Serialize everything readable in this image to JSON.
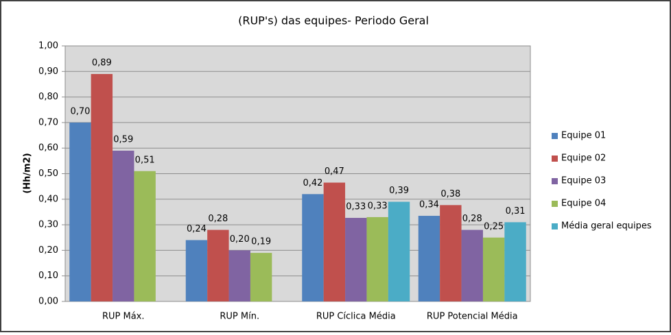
{
  "chart_data": {
    "type": "bar",
    "title": "(RUP's) das equipes- Periodo Geral",
    "y_label": "(Hh/m2)",
    "categories": [
      "RUP Máx.",
      "RUP Mín.",
      "RUP Cíclica Média",
      "RUP Potencial Média"
    ],
    "series": [
      {
        "name": "Equipe 01",
        "color": "#4f81bd",
        "values": [
          0.7,
          0.24,
          0.42,
          0.335
        ],
        "value_labels": [
          "0,70",
          "0,24",
          "0,42",
          "0,34"
        ]
      },
      {
        "name": "Equipe 02",
        "color": "#c0504d",
        "values": [
          0.89,
          0.28,
          0.465,
          0.377
        ],
        "value_labels": [
          "0,89",
          "0,28",
          "0,47",
          "0,38"
        ]
      },
      {
        "name": "Equipe 03",
        "color": "#8064a2",
        "values": [
          0.59,
          0.2,
          0.327,
          0.28
        ],
        "value_labels": [
          "0,59",
          "0,20",
          "0,33",
          "0,28"
        ]
      },
      {
        "name": "Equipe 04",
        "color": "#9bbb59",
        "values": [
          0.51,
          0.19,
          0.33,
          0.25
        ],
        "value_labels": [
          "0,51",
          "0,19",
          "0,33",
          "0,25"
        ]
      },
      {
        "name": "Média geral equipes",
        "color": "#4bacc6",
        "values": [
          null,
          null,
          0.39,
          0.31
        ],
        "value_labels": [
          null,
          null,
          "0,39",
          "0,31"
        ]
      }
    ],
    "ylim": [
      0,
      1
    ],
    "yticks": [
      {
        "value": 0,
        "label": "0,00"
      },
      {
        "value": 0.1,
        "label": "0,10"
      },
      {
        "value": 0.2,
        "label": "0,20"
      },
      {
        "value": 0.3,
        "label": "0,30"
      },
      {
        "value": 0.4,
        "label": "0,40"
      },
      {
        "value": 0.5,
        "label": "0,50"
      },
      {
        "value": 0.6,
        "label": "0,60"
      },
      {
        "value": 0.7,
        "label": "0,70"
      },
      {
        "value": 0.8,
        "label": "0,80"
      },
      {
        "value": 0.9,
        "label": "0,90"
      },
      {
        "value": 1,
        "label": "1,00"
      }
    ],
    "grid": true,
    "legend": "right"
  }
}
